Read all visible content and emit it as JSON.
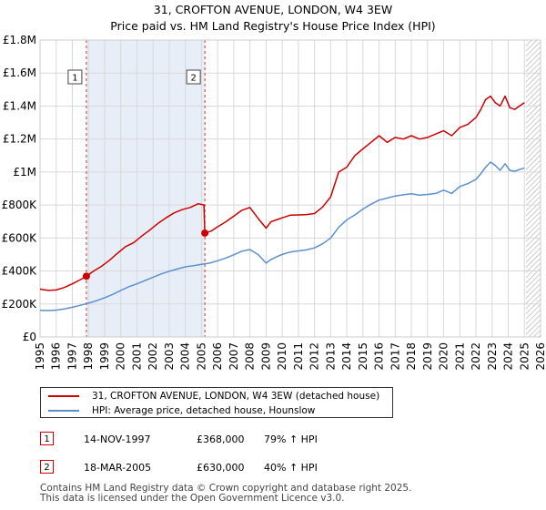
{
  "header": {
    "title": "31, CROFTON AVENUE, LONDON, W4 3EW",
    "subtitle": "Price paid vs. HM Land Registry's House Price Index (HPI)"
  },
  "colors": {
    "property": "#cc0000",
    "hpi": "#5b8fcf",
    "shade": "#e8eef7",
    "grid": "#d8d8d8"
  },
  "chart_data": {
    "type": "line",
    "title": "31, CROFTON AVENUE, LONDON, W4 3EW — Price paid vs. HM Land Registry's House Price Index (HPI)",
    "xlabel": "",
    "ylabel": "",
    "xlim": [
      1995,
      2026
    ],
    "ylim": [
      0,
      1800000
    ],
    "x_ticks": [
      "1995",
      "1996",
      "1997",
      "1998",
      "1999",
      "2000",
      "2001",
      "2002",
      "2003",
      "2004",
      "2005",
      "2006",
      "2007",
      "2008",
      "2009",
      "2010",
      "2011",
      "2012",
      "2013",
      "2014",
      "2015",
      "2016",
      "2017",
      "2018",
      "2019",
      "2020",
      "2021",
      "2022",
      "2023",
      "2024",
      "2025",
      "2026"
    ],
    "y_ticks": [
      {
        "value": 0,
        "label": "£0"
      },
      {
        "value": 200000,
        "label": "£200K"
      },
      {
        "value": 400000,
        "label": "£400K"
      },
      {
        "value": 600000,
        "label": "£600K"
      },
      {
        "value": 800000,
        "label": "£800K"
      },
      {
        "value": 1000000,
        "label": "£1M"
      },
      {
        "value": 1200000,
        "label": "£1.2M"
      },
      {
        "value": 1400000,
        "label": "£1.4M"
      },
      {
        "value": 1600000,
        "label": "£1.6M"
      },
      {
        "value": 1800000,
        "label": "£1.8M"
      }
    ],
    "grid": true,
    "shaded_spans": [
      [
        1997.87,
        2005.21
      ]
    ],
    "future_hatch_from": 2025.1,
    "series": [
      {
        "name": "31, CROFTON AVENUE, LONDON, W4 3EW (detached house)",
        "color": "#cc0000",
        "x": [
          1995.0,
          1995.5,
          1996.0,
          1996.5,
          1997.0,
          1997.5,
          1997.87,
          1998.3,
          1998.8,
          1999.3,
          1999.8,
          2000.3,
          2000.8,
          2001.3,
          2001.8,
          2002.3,
          2002.8,
          2003.3,
          2003.8,
          2004.3,
          2004.8,
          2005.15,
          2005.21,
          2005.6,
          2006.0,
          2006.5,
          2007.0,
          2007.5,
          2008.0,
          2008.5,
          2009.0,
          2009.3,
          2009.7,
          2010.0,
          2010.5,
          2011.0,
          2011.5,
          2012.0,
          2012.5,
          2013.0,
          2013.5,
          2014.0,
          2014.5,
          2015.0,
          2015.5,
          2016.0,
          2016.5,
          2017.0,
          2017.5,
          2018.0,
          2018.5,
          2019.0,
          2019.5,
          2020.0,
          2020.5,
          2021.0,
          2021.5,
          2022.0,
          2022.3,
          2022.6,
          2022.9,
          2023.2,
          2023.5,
          2023.8,
          2024.1,
          2024.4,
          2024.7,
          2025.0
        ],
        "values": [
          290000,
          282000,
          285000,
          300000,
          322000,
          348000,
          368000,
          398000,
          428000,
          465000,
          508000,
          548000,
          572000,
          612000,
          648000,
          688000,
          722000,
          752000,
          772000,
          785000,
          808000,
          800000,
          630000,
          642000,
          668000,
          698000,
          732000,
          768000,
          785000,
          720000,
          660000,
          698000,
          712000,
          722000,
          738000,
          740000,
          742000,
          748000,
          788000,
          850000,
          1000000,
          1030000,
          1100000,
          1140000,
          1180000,
          1220000,
          1180000,
          1210000,
          1200000,
          1220000,
          1200000,
          1210000,
          1230000,
          1250000,
          1220000,
          1270000,
          1290000,
          1330000,
          1380000,
          1440000,
          1460000,
          1420000,
          1400000,
          1460000,
          1390000,
          1380000,
          1400000,
          1420000
        ]
      },
      {
        "name": "HPI: Average price, detached house, Hounslow",
        "color": "#5b8fcf",
        "x": [
          1995.0,
          1995.5,
          1996.0,
          1996.5,
          1997.0,
          1997.5,
          1998.0,
          1998.5,
          1999.0,
          1999.5,
          2000.0,
          2000.5,
          2001.0,
          2001.5,
          2002.0,
          2002.5,
          2003.0,
          2003.5,
          2004.0,
          2004.5,
          2005.0,
          2005.5,
          2006.0,
          2006.5,
          2007.0,
          2007.5,
          2008.0,
          2008.5,
          2009.0,
          2009.3,
          2009.7,
          2010.0,
          2010.5,
          2011.0,
          2011.5,
          2012.0,
          2012.5,
          2013.0,
          2013.5,
          2014.0,
          2014.5,
          2015.0,
          2015.5,
          2016.0,
          2016.5,
          2017.0,
          2017.5,
          2018.0,
          2018.5,
          2019.0,
          2019.5,
          2020.0,
          2020.5,
          2021.0,
          2021.5,
          2022.0,
          2022.3,
          2022.6,
          2022.9,
          2023.2,
          2023.5,
          2023.8,
          2024.1,
          2024.4,
          2024.7,
          2025.0
        ],
        "values": [
          162000,
          160000,
          163000,
          170000,
          180000,
          192000,
          205000,
          220000,
          238000,
          258000,
          282000,
          305000,
          322000,
          342000,
          362000,
          382000,
          398000,
          412000,
          425000,
          432000,
          440000,
          448000,
          462000,
          478000,
          498000,
          520000,
          530000,
          500000,
          448000,
          470000,
          488000,
          500000,
          515000,
          522000,
          528000,
          540000,
          565000,
          600000,
          665000,
          710000,
          740000,
          775000,
          805000,
          830000,
          842000,
          855000,
          862000,
          868000,
          860000,
          864000,
          870000,
          890000,
          870000,
          912000,
          930000,
          955000,
          990000,
          1030000,
          1060000,
          1040000,
          1010000,
          1050000,
          1010000,
          1005000,
          1015000,
          1025000
        ]
      }
    ],
    "markers": [
      {
        "label": "1",
        "x": 1997.87,
        "value": 368000
      },
      {
        "label": "2",
        "x": 2005.21,
        "value": 630000
      }
    ]
  },
  "legend": {
    "property_label": "31, CROFTON AVENUE, LONDON, W4 3EW (detached house)",
    "hpi_label": "HPI: Average price, detached house, Hounslow"
  },
  "transactions": [
    {
      "num": "1",
      "date": "14-NOV-1997",
      "price": "£368,000",
      "hpi": "79% ↑ HPI"
    },
    {
      "num": "2",
      "date": "18-MAR-2005",
      "price": "£630,000",
      "hpi": "40% ↑ HPI"
    }
  ],
  "footer": {
    "line1": "Contains HM Land Registry data © Crown copyright and database right 2025.",
    "line2": "This data is licensed under the Open Government Licence v3.0."
  }
}
